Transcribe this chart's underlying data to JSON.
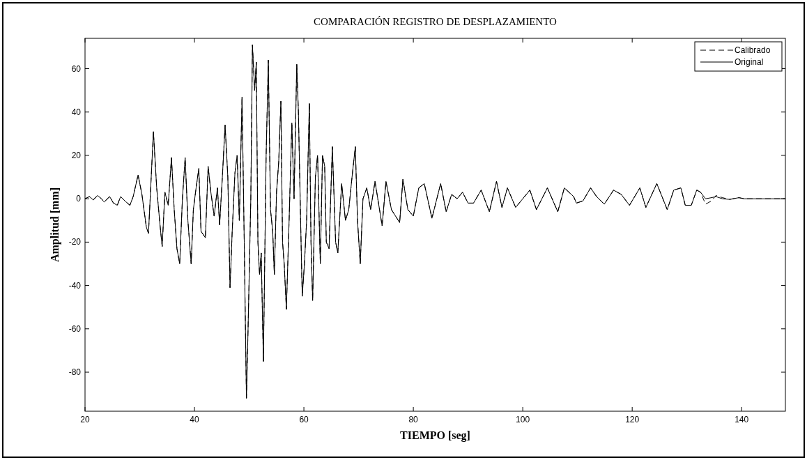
{
  "chart_data": {
    "type": "line",
    "title": "COMPARACIÓN REGISTRO DE DESPLAZAMIENTO",
    "xlabel": "TIEMPO [seg]",
    "ylabel": "Amplitud [mm]",
    "x": [
      20,
      20.8,
      21.5,
      22.3,
      23,
      23.5,
      24.5,
      25.2,
      25.9,
      26.5,
      27.3,
      28.2,
      28.8,
      29.7,
      30.4,
      31.2,
      31.6,
      32,
      32.5,
      33.1,
      33.7,
      34.1,
      34.6,
      35.2,
      35.8,
      36.3,
      36.8,
      37.3,
      37.8,
      38.3,
      38.8,
      39.4,
      39.8,
      40.3,
      40.8,
      41.2,
      42,
      42.5,
      43,
      43.6,
      44.2,
      44.6,
      45.1,
      45.6,
      46.1,
      46.5,
      46.9,
      47.4,
      47.8,
      48.2,
      48.7,
      49.1,
      49.5,
      49.8,
      50.3,
      50.6,
      51,
      51.3,
      51.6,
      51.9,
      52.2,
      52.6,
      53.1,
      53.5,
      53.9,
      54.3,
      54.6,
      55,
      55.4,
      55.8,
      56.1,
      56.4,
      56.8,
      57.3,
      57.8,
      58.2,
      58.7,
      59,
      59.4,
      59.7,
      60.1,
      60.5,
      61,
      61.3,
      61.6,
      62.1,
      62.5,
      63,
      63.4,
      63.8,
      64.1,
      64.6,
      65.2,
      65.8,
      66.2,
      66.9,
      67.6,
      68.2,
      68.8,
      69.4,
      69.8,
      70.3,
      70.8,
      71.5,
      72.2,
      73,
      74.3,
      75,
      76,
      77.5,
      78.1,
      79,
      80,
      81,
      82,
      83.4,
      85,
      86,
      87,
      88,
      89,
      90,
      91,
      92.4,
      93.9,
      95.2,
      96.2,
      97.2,
      98.7,
      100,
      101.3,
      102.5,
      104.5,
      106.4,
      107.6,
      109.3,
      109.8,
      111,
      112.4,
      113.5,
      114.9,
      116.6,
      118,
      119.5,
      121.4,
      122.5,
      124.5,
      126.4,
      127.6,
      128.9,
      129.7,
      130.8,
      131.8,
      132.5,
      133.4,
      134.5,
      135.3,
      136.5,
      137.8,
      139.5,
      140.5,
      148
    ],
    "series": [
      {
        "name": "Calibrado",
        "color": "#000000",
        "line_style": "dashed",
        "values": [
          0,
          1,
          -0.5,
          1.5,
          0,
          -1.5,
          1,
          -2,
          -3,
          1,
          -1,
          -3,
          1,
          11,
          2,
          -13,
          -16,
          5,
          31,
          5,
          -12,
          -22,
          3,
          -3,
          19,
          -5,
          -23,
          -30,
          0,
          19,
          -10,
          -30,
          -5,
          5,
          14,
          -15,
          -18,
          15,
          3,
          -8,
          5,
          -12,
          10,
          34,
          10,
          -41,
          -15,
          12,
          20,
          -10,
          47,
          -20,
          -92,
          -60,
          0,
          71,
          50,
          63,
          -20,
          -35,
          -25,
          -75,
          20,
          64,
          -5,
          -15,
          -35,
          3,
          17,
          45,
          -20,
          -30,
          -51,
          -10,
          35,
          0,
          62,
          40,
          -10,
          -45,
          -30,
          -10,
          44,
          -20,
          -47,
          10,
          20,
          -30,
          20,
          15,
          -20,
          -23,
          24,
          -20,
          -25,
          7,
          -10,
          -5,
          10,
          24,
          -10,
          -30,
          0,
          5,
          -5,
          8,
          -12.5,
          8,
          -5,
          -11,
          9,
          -5,
          -8,
          5,
          7,
          -9,
          7,
          -6,
          2,
          0,
          3,
          -2,
          -2,
          4,
          -6,
          8,
          -4,
          5,
          -4,
          0,
          4,
          -5,
          5,
          -6,
          5,
          1,
          -2,
          -1,
          5,
          1,
          -2.5,
          4,
          2,
          -3,
          5,
          -4,
          7,
          -5,
          4,
          5,
          -3,
          -3,
          4,
          3,
          -2.5,
          -1,
          1.5,
          0.5,
          -0.3,
          0.5,
          0,
          0
        ]
      },
      {
        "name": "Original",
        "color": "#000000",
        "line_style": "solid",
        "values": [
          0,
          1,
          -0.5,
          1.5,
          0,
          -1.5,
          1,
          -2,
          -3,
          1,
          -1,
          -3,
          1,
          11,
          2,
          -13,
          -16,
          5,
          31,
          5,
          -12,
          -22,
          3,
          -3,
          19,
          -5,
          -23,
          -30,
          0,
          19,
          -10,
          -30,
          -5,
          5,
          14,
          -15,
          -18,
          15,
          3,
          -8,
          5,
          -12,
          10,
          34,
          10,
          -41,
          -15,
          12,
          20,
          -10,
          47,
          -20,
          -92,
          -60,
          0,
          71,
          50,
          63,
          -20,
          -35,
          -25,
          -75,
          20,
          64,
          -5,
          -15,
          -35,
          3,
          17,
          45,
          -20,
          -30,
          -51,
          -10,
          35,
          0,
          62,
          40,
          -10,
          -45,
          -30,
          -10,
          44,
          -20,
          -47,
          10,
          20,
          -30,
          20,
          15,
          -20,
          -23,
          24,
          -20,
          -25,
          7,
          -10,
          -5,
          10,
          24,
          -10,
          -30,
          0,
          5,
          -5,
          8,
          -12.5,
          8,
          -5,
          -11,
          9,
          -5,
          -8,
          5,
          7,
          -9,
          7,
          -6,
          2,
          0,
          3,
          -2,
          -2,
          4,
          -6,
          8,
          -4,
          5,
          -4,
          0,
          4,
          -5,
          5,
          -6,
          5,
          1,
          -2,
          -1,
          5,
          1,
          -2.5,
          4,
          2,
          -3,
          5,
          -4,
          7,
          -5,
          4,
          5,
          -3,
          -3,
          4,
          3,
          0,
          0.5,
          1,
          0,
          -0.3,
          0.5,
          0,
          0
        ]
      }
    ],
    "xlim": [
      20,
      148
    ],
    "ylim": [
      -98,
      74
    ],
    "xticks": [
      20,
      40,
      60,
      80,
      100,
      120,
      140
    ],
    "yticks": [
      -80,
      -60,
      -40,
      -20,
      0,
      20,
      40,
      60
    ],
    "grid": false,
    "legend": "top right",
    "marker": "none"
  }
}
